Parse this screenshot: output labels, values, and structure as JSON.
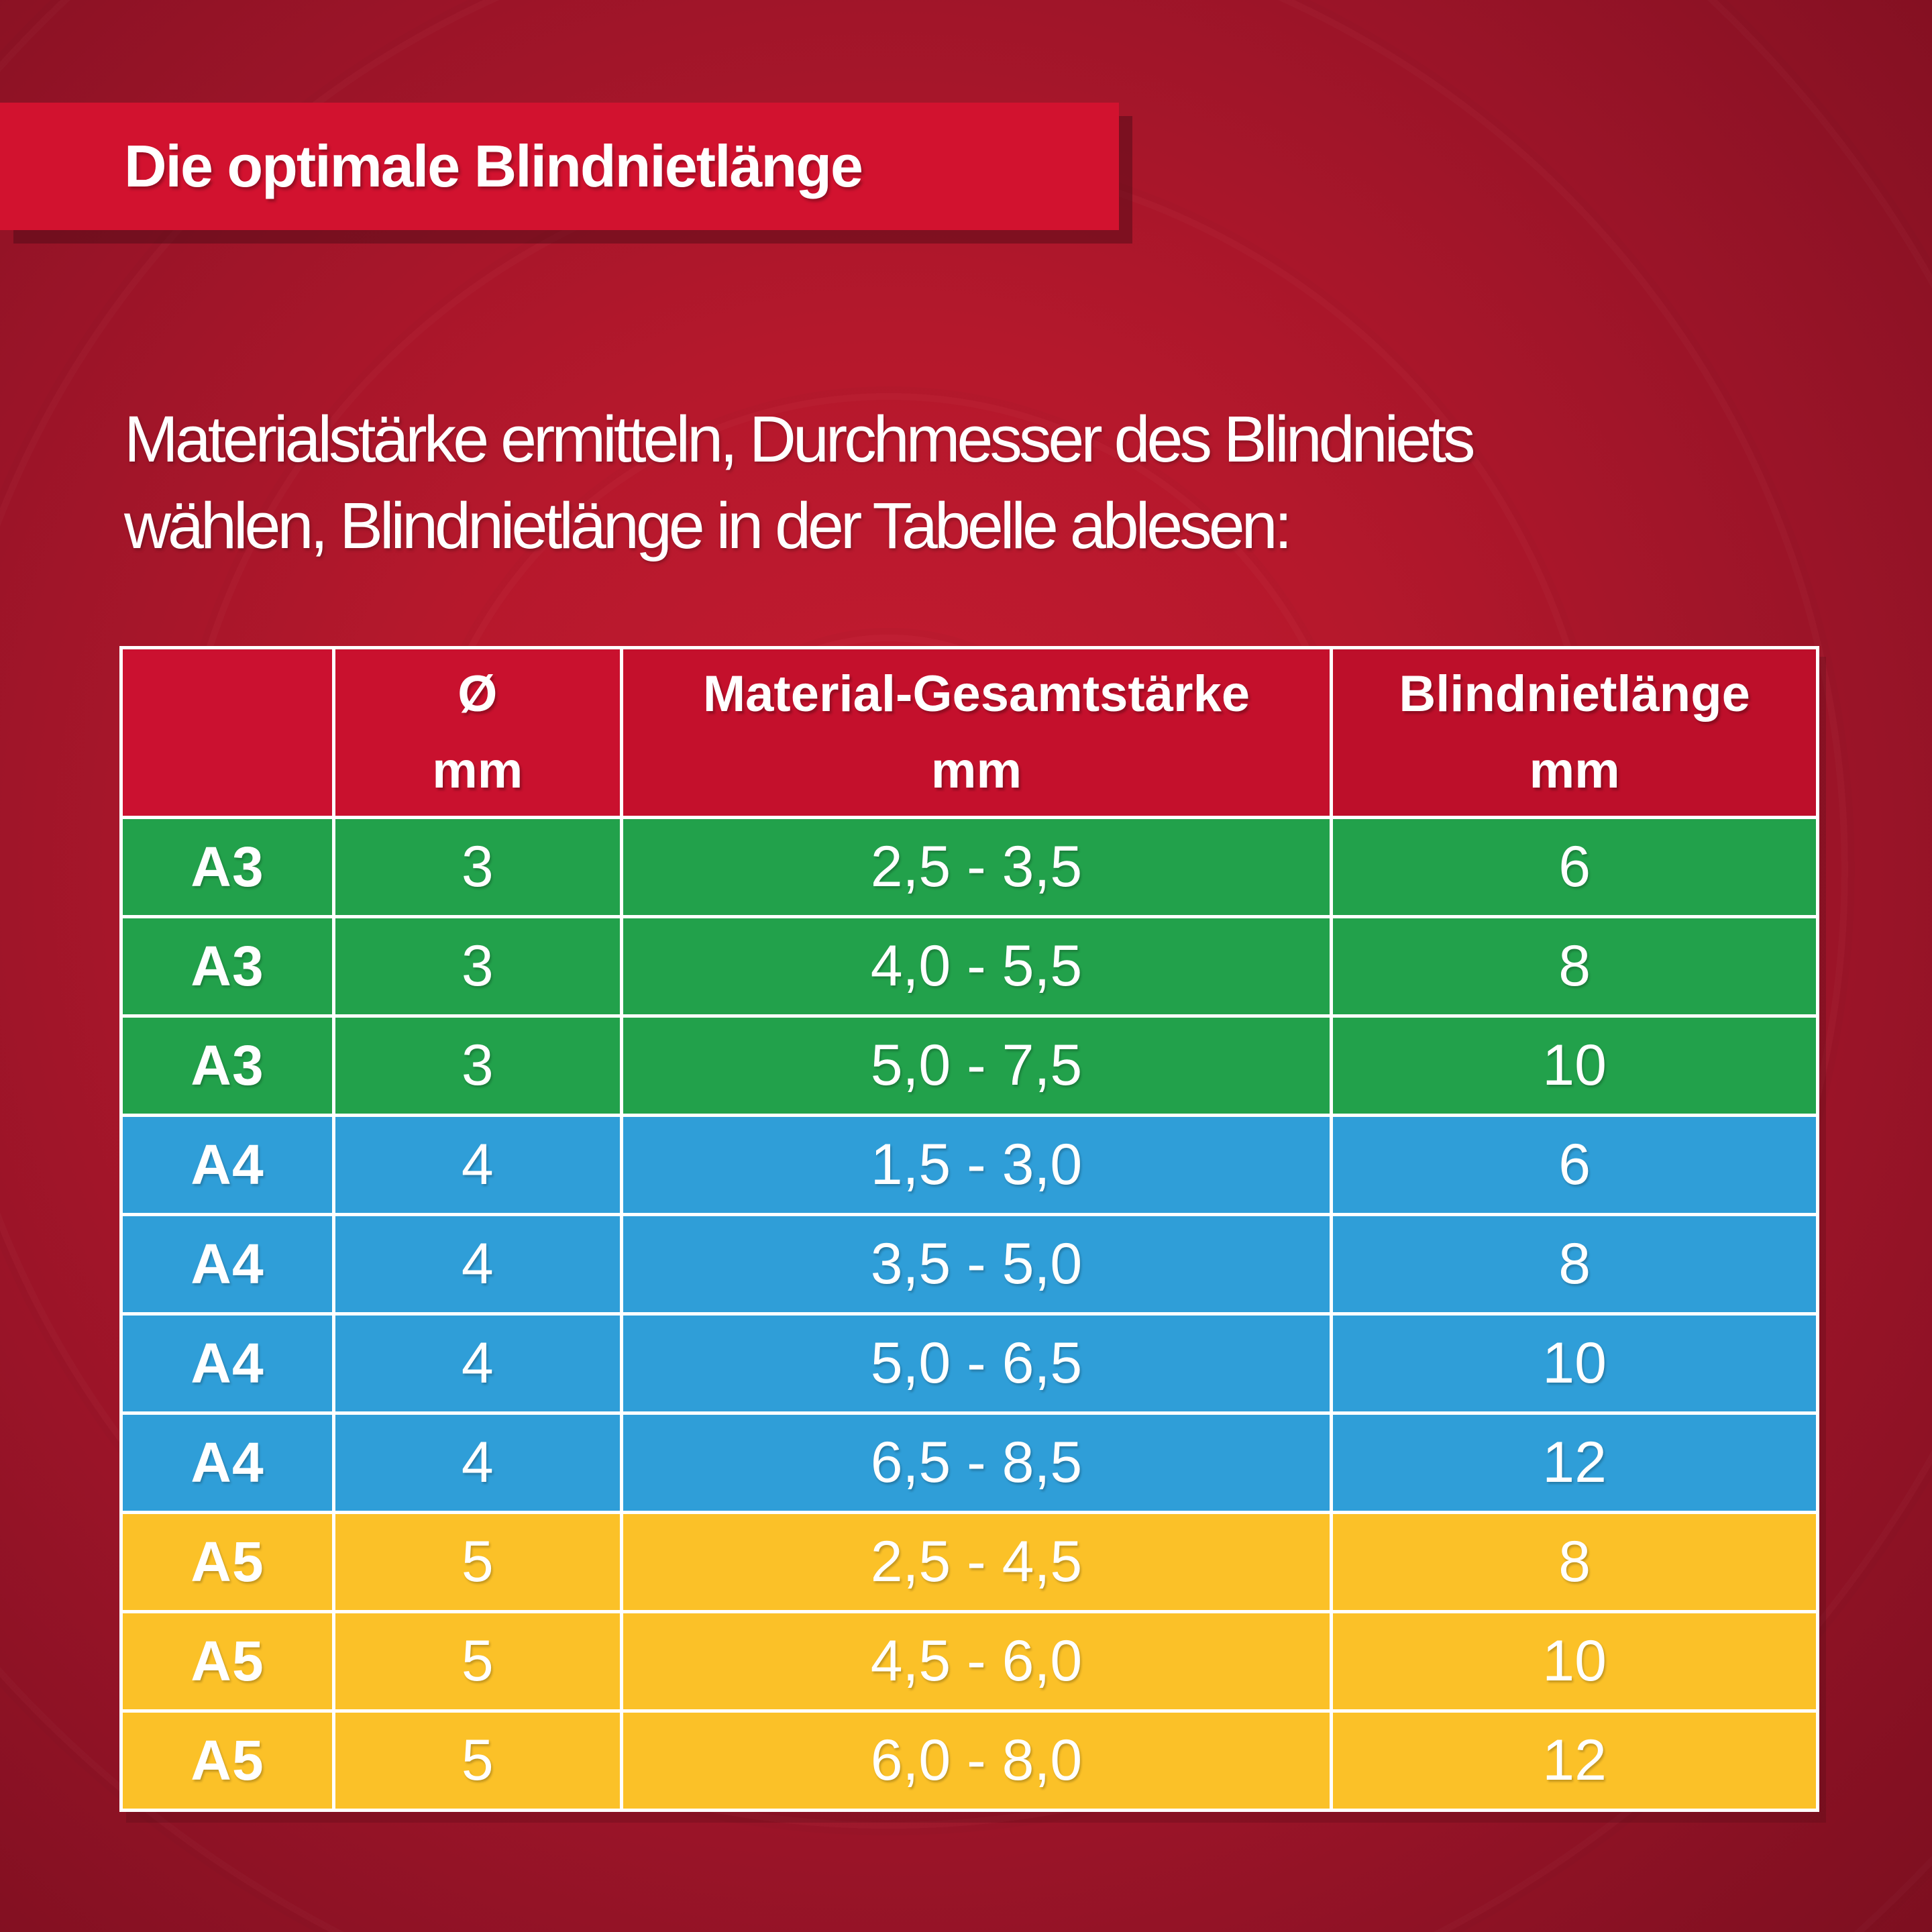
{
  "header": {
    "banner_title": "Die optimale Blindnietlänge"
  },
  "intro": {
    "line1": "Materialstärke ermitteln, Durchmesser des Blindniets",
    "line2": "wählen, Blindnietlänge in der Tabelle ablesen:"
  },
  "colors": {
    "banner_red": "#d2122f",
    "table_header_red": "#c6102d",
    "row_green": "#22a14b",
    "row_blue": "#2f9ed8",
    "row_yellow": "#fbc128",
    "background_center": "#c51b31",
    "background_edge": "#7d0f20",
    "text_white": "#ffffff",
    "grid_lines": "#ffffff"
  },
  "chart_data": {
    "type": "table",
    "title": "Die optimale Blindnietlänge",
    "columns": [
      {
        "title": "",
        "unit": ""
      },
      {
        "title": "Ø",
        "unit": "mm"
      },
      {
        "title": "Material-Gesamtstärke",
        "unit": "mm"
      },
      {
        "title": "Blindnietlänge",
        "unit": "mm"
      }
    ],
    "rows": [
      {
        "group": "A3",
        "diameter": "3",
        "material": "2,5 - 3,5",
        "length": "6",
        "color": "green"
      },
      {
        "group": "A3",
        "diameter": "3",
        "material": "4,0 - 5,5",
        "length": "8",
        "color": "green"
      },
      {
        "group": "A3",
        "diameter": "3",
        "material": "5,0 - 7,5",
        "length": "10",
        "color": "green"
      },
      {
        "group": "A4",
        "diameter": "4",
        "material": "1,5 - 3,0",
        "length": "6",
        "color": "blue"
      },
      {
        "group": "A4",
        "diameter": "4",
        "material": "3,5 - 5,0",
        "length": "8",
        "color": "blue"
      },
      {
        "group": "A4",
        "diameter": "4",
        "material": "5,0 - 6,5",
        "length": "10",
        "color": "blue"
      },
      {
        "group": "A4",
        "diameter": "4",
        "material": "6,5 - 8,5",
        "length": "12",
        "color": "blue"
      },
      {
        "group": "A5",
        "diameter": "5",
        "material": "2,5 - 4,5",
        "length": "8",
        "color": "yellow"
      },
      {
        "group": "A5",
        "diameter": "5",
        "material": "4,5 - 6,0",
        "length": "10",
        "color": "yellow"
      },
      {
        "group": "A5",
        "diameter": "5",
        "material": "6,0 - 8,0",
        "length": "12",
        "color": "yellow"
      }
    ],
    "legend_groups": [
      {
        "label": "A3",
        "meaning": "Blindniet Ø 3 mm",
        "hex": "#22a14b"
      },
      {
        "label": "A4",
        "meaning": "Blindniet Ø 4 mm",
        "hex": "#2f9ed8"
      },
      {
        "label": "A5",
        "meaning": "Blindniet Ø 5 mm",
        "hex": "#fbc128"
      }
    ],
    "grid": true,
    "layout": "header row red on top, 10 color-grouped data rows, white grid lines"
  }
}
